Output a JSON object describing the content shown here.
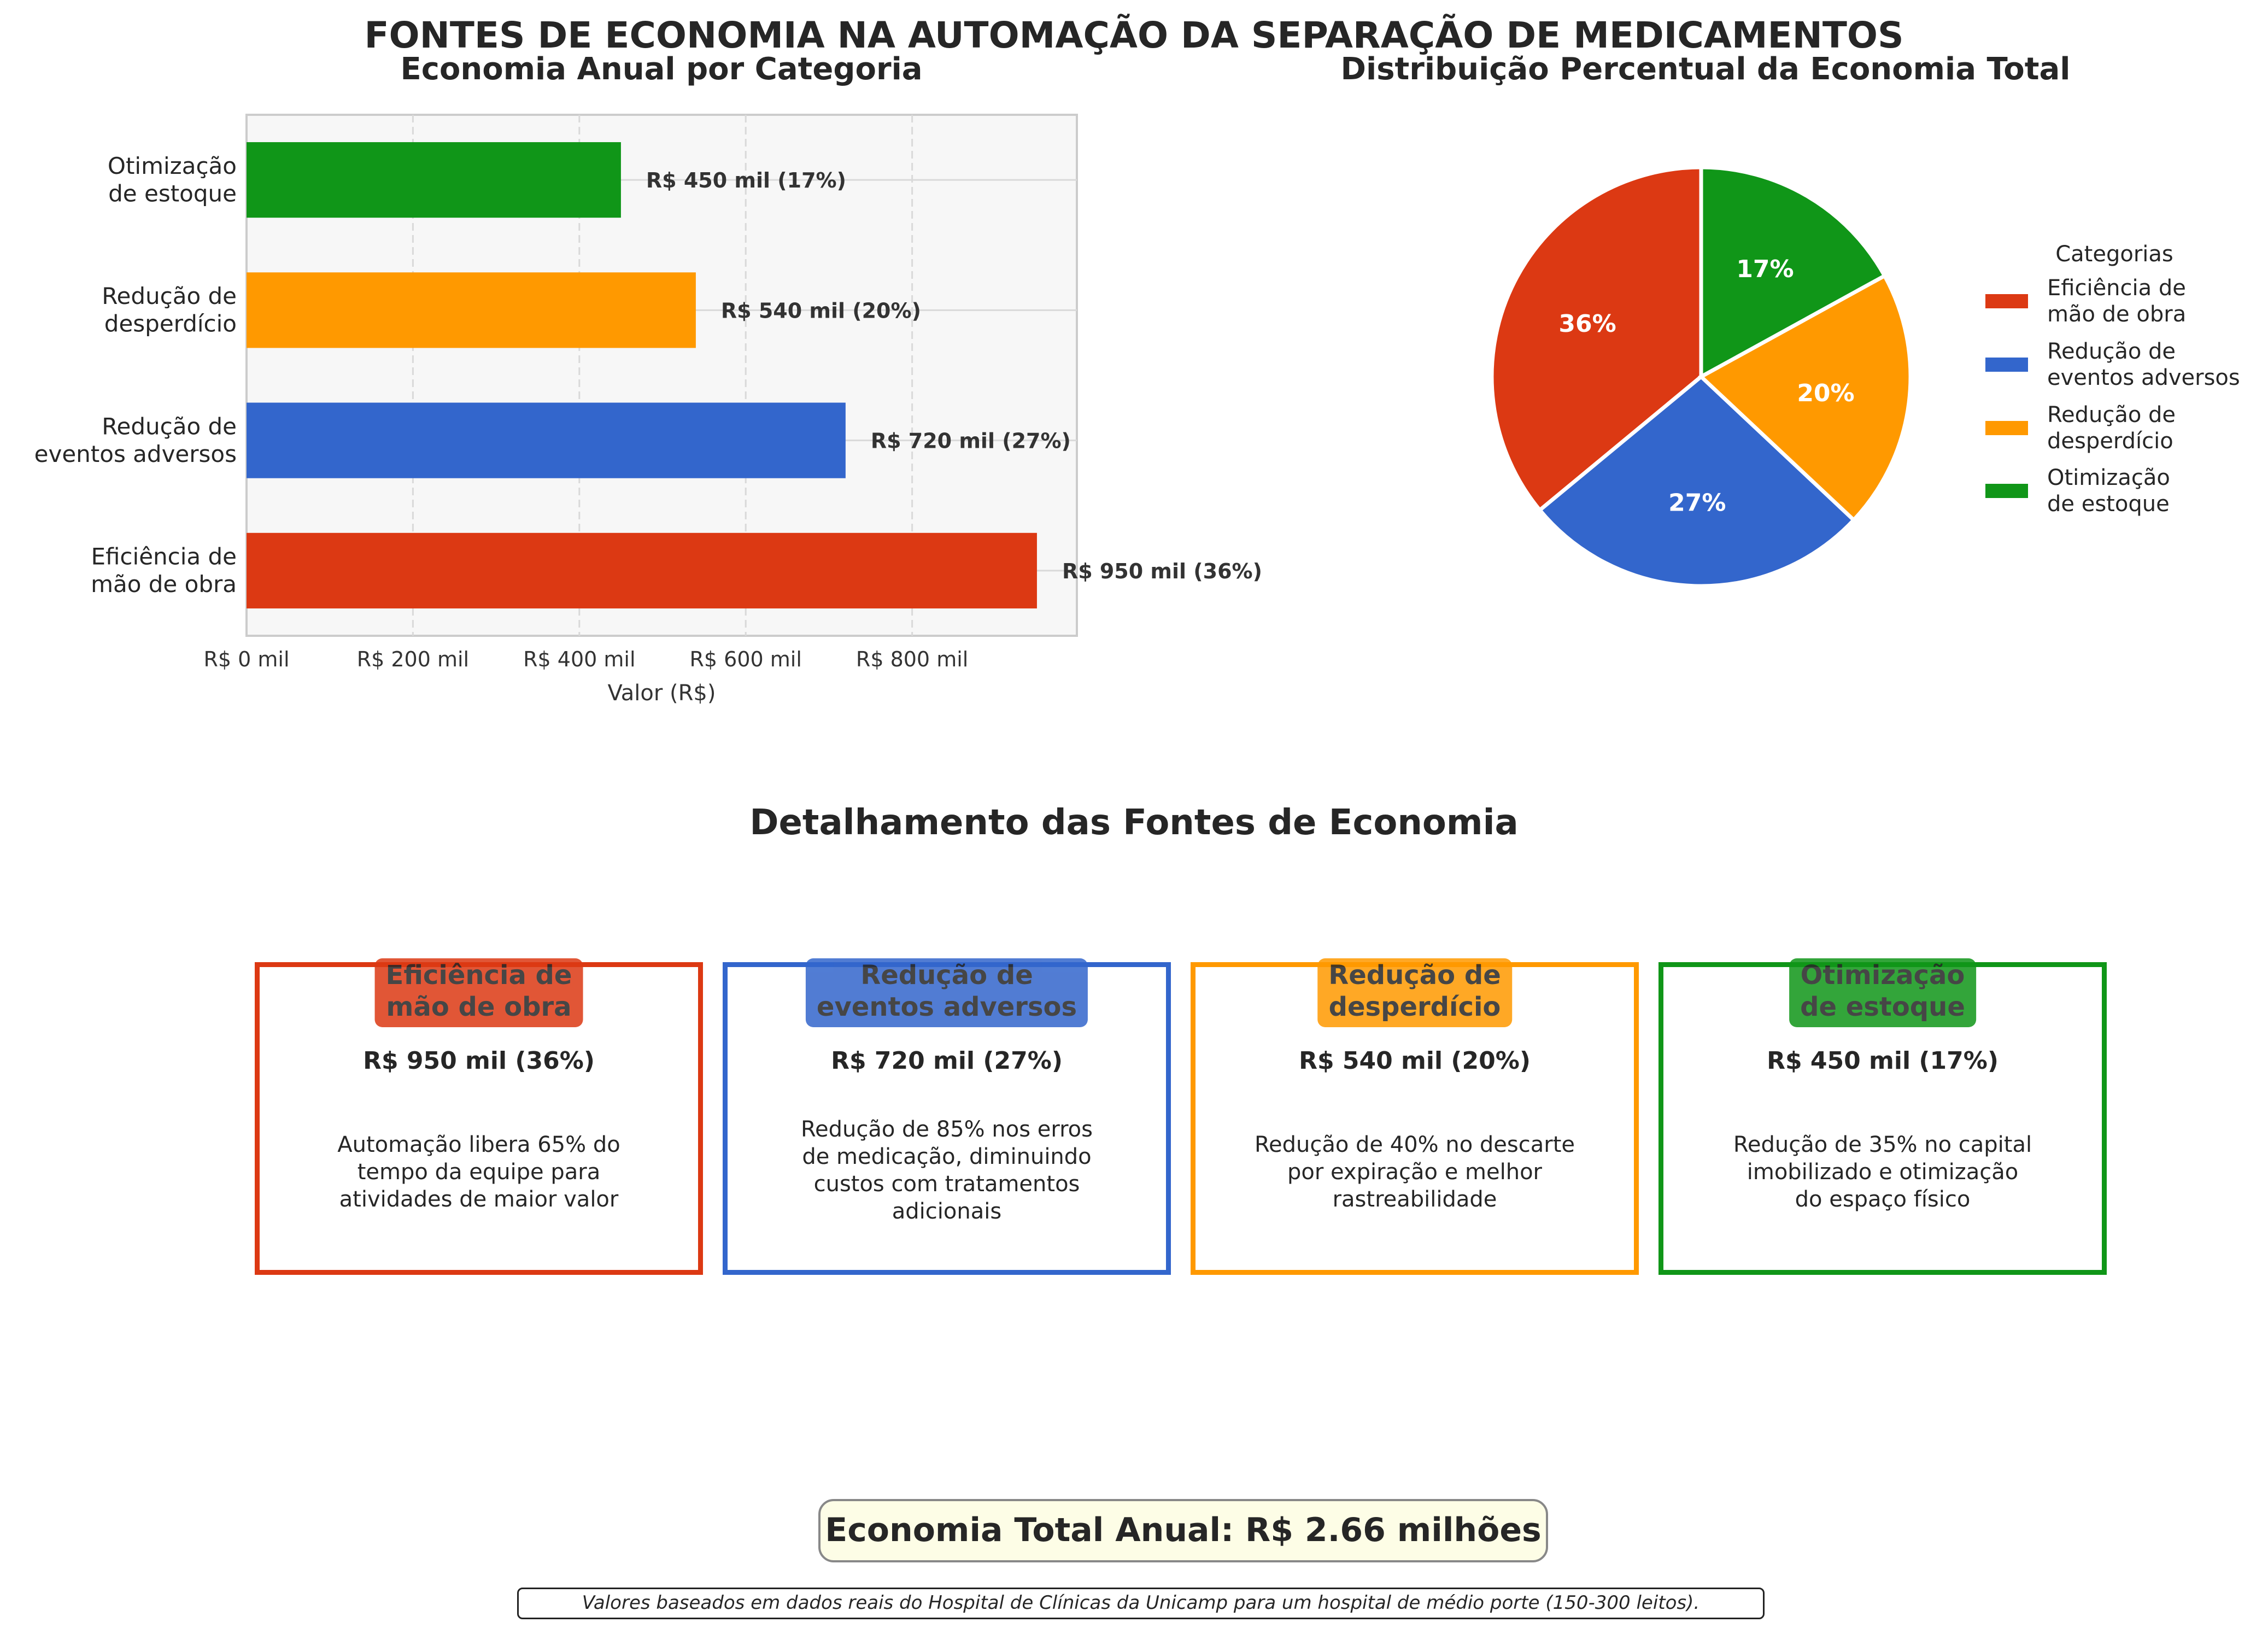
{
  "page_title": "FONTES DE ECONOMIA NA AUTOMAÇÃO DA SEPARAÇÃO DE MEDICAMENTOS",
  "colors": {
    "labor": "#dc3913",
    "adverse": "#3366cc",
    "waste": "#ff9900",
    "stock": "#109618"
  },
  "chart_data": [
    {
      "type": "bar",
      "orientation": "horizontal",
      "title": "Economia Anual por Categoria",
      "xlabel": "Valor (R$)",
      "ylabel": "",
      "xlim": [
        0,
        998
      ],
      "xticks": [
        0,
        200,
        400,
        600,
        800
      ],
      "xtick_labels": [
        "R$ 0 mil",
        "R$ 200 mil",
        "R$ 400 mil",
        "R$ 600 mil",
        "R$ 800 mil"
      ],
      "grid": true,
      "categories": [
        "Eficiência de\nmão de obra",
        "Redução de\neventos adversos",
        "Redução de\ndesperdício",
        "Otimização\nde estoque"
      ],
      "values": [
        950,
        720,
        540,
        450
      ],
      "data_labels": [
        "R$ 950 mil (36%)",
        "R$ 720 mil (27%)",
        "R$ 540 mil (20%)",
        "R$ 450 mil (17%)"
      ],
      "colors": [
        "#dc3913",
        "#3366cc",
        "#ff9900",
        "#109618"
      ]
    },
    {
      "type": "pie",
      "title": "Distribuição Percentual da Economia Total",
      "labels": [
        "Eficiência de\nmão de obra",
        "Redução de\neventos adversos",
        "Redução de\ndesperdício",
        "Otimização\nde estoque"
      ],
      "values": [
        36,
        27,
        20,
        17
      ],
      "value_labels": [
        "36%",
        "27%",
        "20%",
        "17%"
      ],
      "colors": [
        "#dc3913",
        "#3366cc",
        "#ff9900",
        "#109618"
      ],
      "legend_title": "Categorias",
      "legend_position": "right"
    }
  ],
  "details": {
    "title": "Detalhamento das Fontes de Economia",
    "cards": [
      {
        "title": "Eficiência de\nmão de obra",
        "value": "R$ 950 mil (36%)",
        "description": "Automação libera 65% do\ntempo da equipe para\natividades de maior valor",
        "color": "#dc3913"
      },
      {
        "title": "Redução de\neventos adversos",
        "value": "R$ 720 mil (27%)",
        "description": "Redução de 85% nos erros\nde medicação, diminuindo\ncustos com tratamentos\nadicionais",
        "color": "#3366cc"
      },
      {
        "title": "Redução de\ndesperdício",
        "value": "R$ 540 mil (20%)",
        "description": "Redução de 40% no descarte\npor expiração e melhor\nrastreabilidade",
        "color": "#ff9900"
      },
      {
        "title": "Otimização\nde estoque",
        "value": "R$ 450 mil (17%)",
        "description": "Redução de 35% no capital\nimobilizado e otimização\ndo espaço físico",
        "color": "#109618"
      }
    ]
  },
  "total": "Economia Total Anual: R$ 2.66 milhões",
  "note": "Valores baseados em dados reais do Hospital de Clínicas da Unicamp para um hospital de médio porte (150-300 leitos)."
}
